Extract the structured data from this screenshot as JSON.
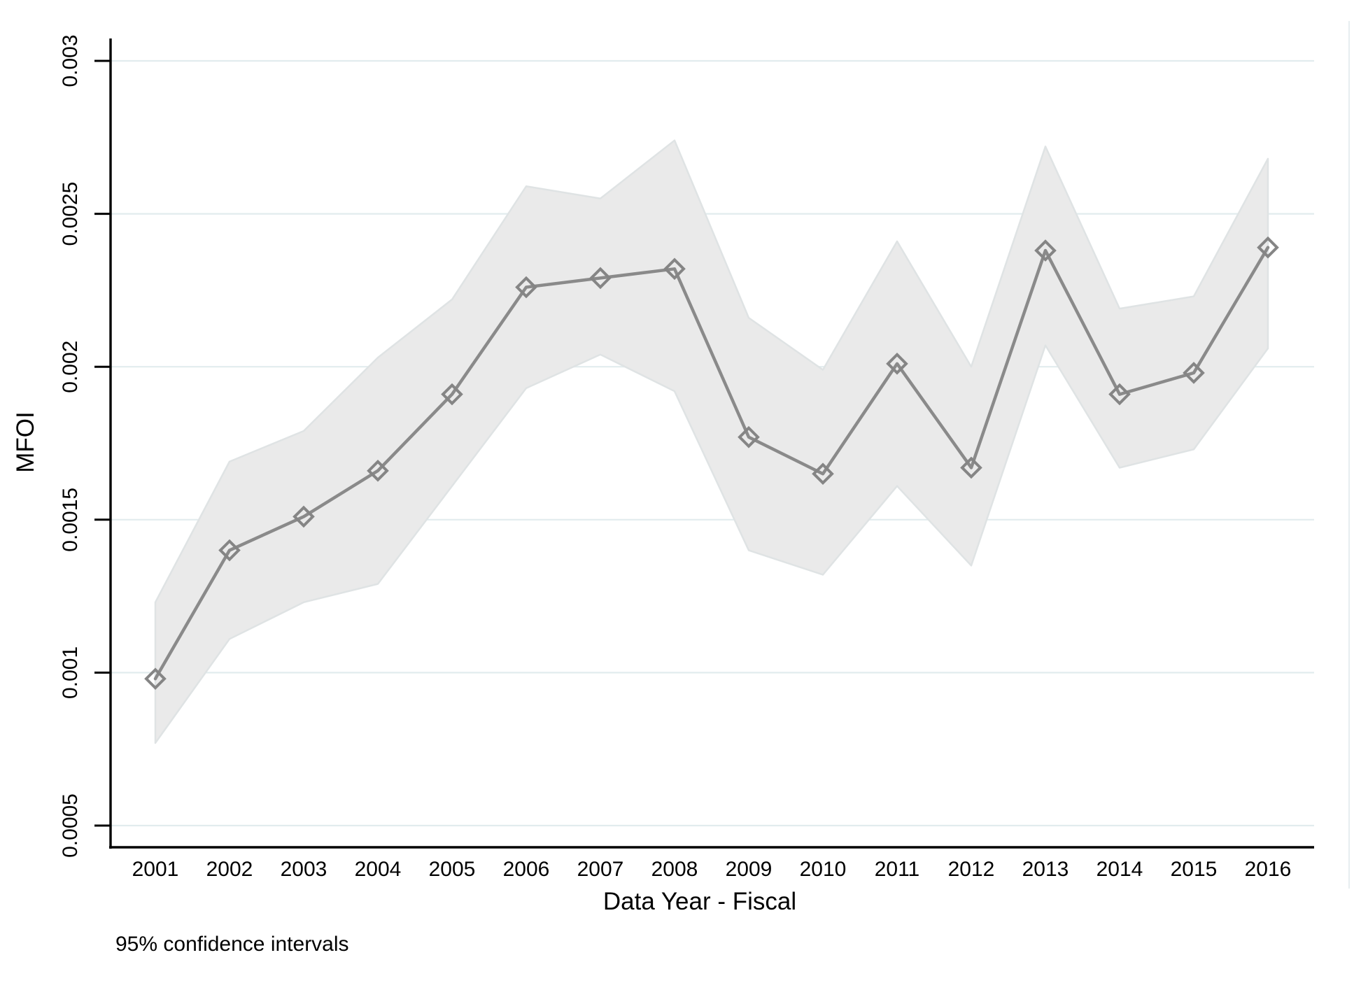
{
  "figure": {
    "background": "#ffffff"
  },
  "chart_data": {
    "type": "line",
    "title": "",
    "xlabel": "Data Year - Fiscal",
    "ylabel": "MFOI",
    "note": "95% confidence intervals",
    "legend": "none",
    "grid": "horizontal",
    "marker": "hollow-diamond",
    "x": [
      2001,
      2002,
      2003,
      2004,
      2005,
      2006,
      2007,
      2008,
      2009,
      2010,
      2011,
      2012,
      2013,
      2014,
      2015,
      2016
    ],
    "xtick_labels": [
      "2001",
      "2002",
      "2003",
      "2004",
      "2005",
      "2006",
      "2007",
      "2008",
      "2009",
      "2010",
      "2011",
      "2012",
      "2013",
      "2014",
      "2015",
      "2016"
    ],
    "series": [
      {
        "name": "MFOI point estimate",
        "values": [
          0.00098,
          0.0014,
          0.00151,
          0.00166,
          0.00191,
          0.00226,
          0.00229,
          0.00232,
          0.00177,
          0.00165,
          0.00201,
          0.00167,
          0.00238,
          0.00191,
          0.00198,
          0.00239
        ]
      }
    ],
    "ci": {
      "label": "95% confidence interval band",
      "lower": [
        0.00077,
        0.00111,
        0.00123,
        0.00129,
        0.00161,
        0.00193,
        0.00204,
        0.00192,
        0.0014,
        0.00132,
        0.00161,
        0.00135,
        0.00207,
        0.00167,
        0.00173,
        0.00206
      ],
      "upper": [
        0.00123,
        0.00169,
        0.00179,
        0.00203,
        0.00222,
        0.00259,
        0.00255,
        0.00274,
        0.00216,
        0.00199,
        0.00241,
        0.002,
        0.00272,
        0.00219,
        0.00223,
        0.00268
      ]
    },
    "ylim": [
      0.0005,
      0.003
    ],
    "yticks": [
      0.0005,
      0.001,
      0.0015,
      0.002,
      0.0025,
      0.003
    ],
    "ytick_labels": [
      "0.0005",
      "0.001",
      "0.0015",
      "0.002",
      "0.0025",
      "0.003"
    ]
  },
  "style": {
    "band_fill": "#eaeaea",
    "band_edge": "#dfe3e4",
    "line_color": "#8a8a8a",
    "marker_color": "#858585",
    "grid_color": "#e2ecee",
    "plot_border_color": "#e7eef0",
    "axis_color": "#000000",
    "text_color": "#000000"
  }
}
